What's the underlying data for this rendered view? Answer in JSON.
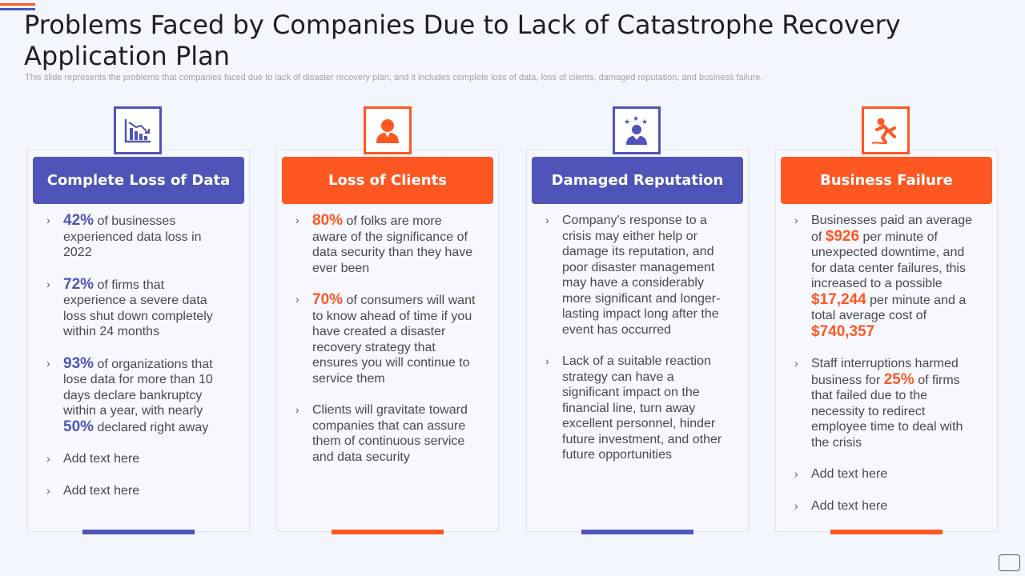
{
  "slide": {
    "title": "Problems Faced by Companies Due to Lack of Catastrophe Recovery Application Plan",
    "subtitle": "This slide represents the problems that companies faced due to lack of disaster recovery plan, and it includes complete loss of data, loss of clients, damaged reputation, and business failure."
  },
  "colors": {
    "blue": "#4f54b8",
    "orange": "#ff5722"
  },
  "chevron": "›",
  "cards": [
    {
      "header": "Complete Loss of Data",
      "icon": "declining-chart-icon",
      "bullets": [
        {
          "num": "42%",
          "text": " of businesses experienced data loss in 2022"
        },
        {
          "num": "72%",
          "text": " of firms that experience a severe data loss shut down completely within 24 months"
        },
        {
          "num": "93%",
          "text": " of organizations that lose data for more than 10 days declare bankruptcy within a year, with nearly ",
          "num2": "50%",
          "text2": " declared right away"
        },
        {
          "text": "Add text here"
        },
        {
          "text": "Add text here"
        }
      ]
    },
    {
      "header": "Loss of Clients",
      "icon": "person-icon",
      "bullets": [
        {
          "num": "80%",
          "text": " of folks are more aware of the significance of data security than they have ever been"
        },
        {
          "num": "70%",
          "text": "  of consumers will want to know ahead of time if you have created a disaster recovery strategy that ensures you will continue to service them"
        },
        {
          "text": "Clients will gravitate toward companies that can assure them of continuous service and data security"
        }
      ]
    },
    {
      "header": "Damaged Reputation",
      "icon": "rated-person-icon",
      "bullets": [
        {
          "text": "Company's response to a crisis may either help or damage its reputation, and poor disaster management may have a considerably more significant and longer-lasting impact long after the event has occurred"
        },
        {
          "text": "Lack of a suitable reaction strategy can have a significant impact on the financial line, turn away excellent personnel, hinder future investment, and other future opportunities"
        }
      ]
    },
    {
      "header": "Business Failure",
      "icon": "falling-person-icon",
      "bullets": [
        {
          "pre": "Businesses paid an average of ",
          "num": "$926",
          "mid": " per minute of unexpected downtime, and for data center failures, this increased to a possible ",
          "num2": "$17,244",
          "mid2": " per minute and a total average cost of ",
          "num3": "$740,357"
        },
        {
          "pre": "Staff interruptions harmed business for ",
          "num": "25%",
          "text": " of firms that failed due to the necessity to redirect employee time to deal with the crisis"
        },
        {
          "text": "Add text here"
        },
        {
          "text": "Add text here"
        }
      ]
    }
  ]
}
